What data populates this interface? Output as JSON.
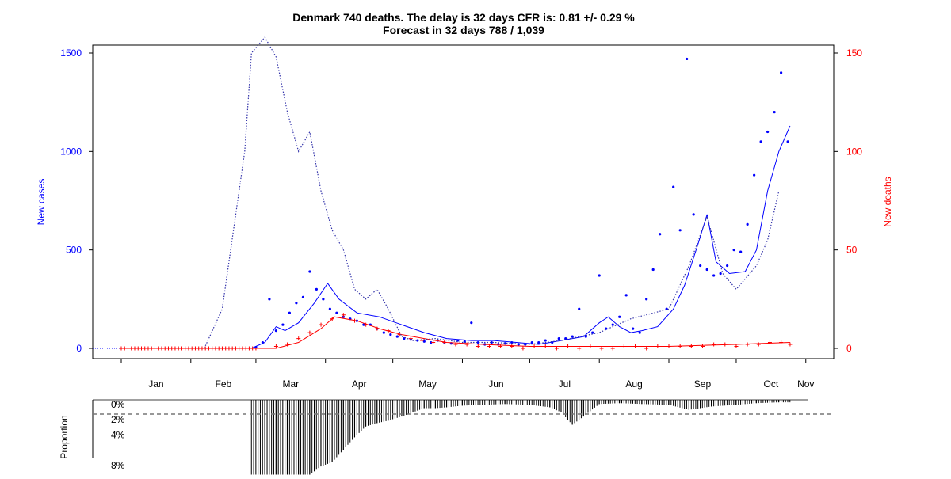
{
  "chart_data": [
    {
      "type": "line",
      "title": "Denmark 740 deaths. The delay is 32 days CFR is: 0.81 +/- 0.29 %",
      "subtitle": "Forecast in 32 days 788 / 1,039",
      "ylabel": "New cases",
      "y2label": "New deaths",
      "ylim": [
        0,
        1500
      ],
      "y2lim": [
        0,
        150
      ],
      "y_ticks": [
        "0",
        "500",
        "1000",
        "1500"
      ],
      "y2_ticks": [
        "0",
        "50",
        "100",
        "150"
      ],
      "x_ticks": [
        "Jan",
        "Feb",
        "Mar",
        "Apr",
        "May",
        "Jun",
        "Jul",
        "Aug",
        "Sep",
        "Oct",
        "Nov"
      ],
      "grid": false,
      "colors": {
        "cases": "#0000ff",
        "deaths": "#ff0000",
        "projection": "#3333aa"
      },
      "series": [
        {
          "name": "",
          "kind": "cases-points",
          "x": [
            "2020-03-01",
            "2020-03-04",
            "2020-03-07",
            "2020-03-10",
            "2020-03-13",
            "2020-03-16",
            "2020-03-19",
            "2020-03-22",
            "2020-03-25",
            "2020-03-28",
            "2020-03-31",
            "2020-04-03",
            "2020-04-06",
            "2020-04-09",
            "2020-04-12",
            "2020-04-15",
            "2020-04-18",
            "2020-04-21",
            "2020-04-24",
            "2020-04-27",
            "2020-04-30",
            "2020-05-03",
            "2020-05-06",
            "2020-05-09",
            "2020-05-12",
            "2020-05-15",
            "2020-05-18",
            "2020-05-21",
            "2020-05-24",
            "2020-05-27",
            "2020-05-30",
            "2020-06-02",
            "2020-06-05",
            "2020-06-08",
            "2020-06-11",
            "2020-06-14",
            "2020-06-17",
            "2020-06-20",
            "2020-06-23",
            "2020-06-26",
            "2020-06-29",
            "2020-07-02",
            "2020-07-05",
            "2020-07-08",
            "2020-07-11",
            "2020-07-14",
            "2020-07-17",
            "2020-07-20",
            "2020-07-23",
            "2020-07-26",
            "2020-07-29",
            "2020-08-01",
            "2020-08-04",
            "2020-08-07",
            "2020-08-10",
            "2020-08-13",
            "2020-08-16",
            "2020-08-19",
            "2020-08-22",
            "2020-08-25",
            "2020-08-28",
            "2020-08-31",
            "2020-09-03",
            "2020-09-06",
            "2020-09-09",
            "2020-09-12",
            "2020-09-15",
            "2020-09-18",
            "2020-09-21",
            "2020-09-24",
            "2020-09-27",
            "2020-09-30",
            "2020-10-03",
            "2020-10-06",
            "2020-10-09",
            "2020-10-12",
            "2020-10-15",
            "2020-10-18",
            "2020-10-21",
            "2020-10-24"
          ],
          "values": [
            5,
            30,
            250,
            90,
            120,
            180,
            230,
            260,
            390,
            300,
            250,
            200,
            180,
            160,
            150,
            140,
            120,
            120,
            100,
            80,
            70,
            60,
            50,
            45,
            40,
            35,
            30,
            40,
            30,
            25,
            40,
            35,
            130,
            30,
            20,
            30,
            20,
            25,
            30,
            20,
            20,
            30,
            30,
            40,
            30,
            50,
            50,
            60,
            200,
            60,
            80,
            370,
            100,
            120,
            160,
            270,
            100,
            80,
            250,
            400,
            580,
            200,
            820,
            600,
            1470,
            680,
            420,
            400,
            370,
            380,
            420,
            500,
            490,
            630,
            880,
            1050,
            1100,
            1200,
            1400,
            1050
          ]
        },
        {
          "name": "",
          "kind": "cases-smoothed",
          "x": [
            "2020-01-01",
            "2020-02-28",
            "2020-03-05",
            "2020-03-10",
            "2020-03-14",
            "2020-03-20",
            "2020-03-27",
            "2020-04-02",
            "2020-04-07",
            "2020-04-15",
            "2020-04-25",
            "2020-05-05",
            "2020-05-15",
            "2020-05-25",
            "2020-06-05",
            "2020-06-15",
            "2020-06-25",
            "2020-07-05",
            "2020-07-15",
            "2020-07-25",
            "2020-08-01",
            "2020-08-05",
            "2020-08-10",
            "2020-08-15",
            "2020-08-20",
            "2020-08-27",
            "2020-09-03",
            "2020-09-08",
            "2020-09-14",
            "2020-09-18",
            "2020-09-22",
            "2020-09-28",
            "2020-10-05",
            "2020-10-10",
            "2020-10-15",
            "2020-10-20",
            "2020-10-25"
          ],
          "values": [
            0,
            0,
            30,
            110,
            90,
            130,
            230,
            330,
            250,
            180,
            160,
            120,
            80,
            50,
            40,
            40,
            30,
            20,
            40,
            60,
            130,
            160,
            110,
            80,
            90,
            110,
            200,
            320,
            530,
            680,
            440,
            380,
            390,
            500,
            800,
            1000,
            1130
          ]
        },
        {
          "name": "",
          "kind": "deaths-points",
          "x": [
            "2020-03-10",
            "2020-03-15",
            "2020-03-20",
            "2020-03-25",
            "2020-03-30",
            "2020-04-04",
            "2020-04-09",
            "2020-04-14",
            "2020-04-19",
            "2020-04-24",
            "2020-04-29",
            "2020-05-04",
            "2020-05-09",
            "2020-05-14",
            "2020-05-19",
            "2020-05-24",
            "2020-05-29",
            "2020-06-03",
            "2020-06-08",
            "2020-06-13",
            "2020-06-18",
            "2020-06-23",
            "2020-06-28",
            "2020-07-03",
            "2020-07-08",
            "2020-07-13",
            "2020-07-18",
            "2020-07-23",
            "2020-07-28",
            "2020-08-02",
            "2020-08-07",
            "2020-08-12",
            "2020-08-17",
            "2020-08-22",
            "2020-08-27",
            "2020-09-01",
            "2020-09-06",
            "2020-09-11",
            "2020-09-16",
            "2020-09-21",
            "2020-09-26",
            "2020-10-01",
            "2020-10-06",
            "2020-10-11",
            "2020-10-16",
            "2020-10-21",
            "2020-10-25"
          ],
          "values": [
            1,
            2,
            5,
            8,
            12,
            15,
            17,
            14,
            12,
            10,
            9,
            7,
            5,
            4,
            3,
            3,
            2,
            2,
            1,
            1,
            1,
            1,
            0,
            1,
            1,
            0,
            1,
            0,
            1,
            0,
            0,
            1,
            1,
            0,
            1,
            1,
            1,
            1,
            1,
            2,
            2,
            1,
            2,
            2,
            3,
            3,
            2
          ]
        },
        {
          "name": "",
          "kind": "deaths-smoothed",
          "x": [
            "2020-01-01",
            "2020-03-10",
            "2020-03-20",
            "2020-03-30",
            "2020-04-05",
            "2020-04-15",
            "2020-04-25",
            "2020-05-05",
            "2020-05-15",
            "2020-05-25",
            "2020-06-10",
            "2020-07-01",
            "2020-08-01",
            "2020-09-01",
            "2020-10-01",
            "2020-10-25"
          ],
          "values": [
            0,
            0,
            3,
            10,
            16,
            14,
            10,
            7,
            5,
            3,
            2,
            1,
            1,
            1,
            2,
            3
          ]
        },
        {
          "name": "",
          "kind": "projection-dotted",
          "x": [
            "2020-02-07",
            "2020-02-15",
            "2020-02-20",
            "2020-02-25",
            "2020-02-28",
            "2020-03-05",
            "2020-03-10",
            "2020-03-15",
            "2020-03-20",
            "2020-03-25",
            "2020-03-30",
            "2020-04-04",
            "2020-04-09",
            "2020-04-14",
            "2020-04-19",
            "2020-04-24",
            "2020-04-29",
            "2020-05-05",
            "2020-05-10",
            "2020-05-20",
            "2020-06-01",
            "2020-06-15",
            "2020-07-01",
            "2020-07-15",
            "2020-08-01",
            "2020-08-15",
            "2020-09-01",
            "2020-09-10",
            "2020-09-18",
            "2020-09-25",
            "2020-10-01",
            "2020-10-10",
            "2020-10-15",
            "2020-10-20"
          ],
          "values": [
            0,
            200,
            600,
            1000,
            1500,
            1580,
            1480,
            1200,
            1000,
            1100,
            800,
            600,
            500,
            300,
            250,
            300,
            200,
            60,
            40,
            50,
            30,
            30,
            20,
            40,
            80,
            150,
            200,
            420,
            670,
            380,
            300,
            420,
            550,
            800
          ]
        }
      ]
    },
    {
      "type": "bar",
      "ylabel": "Proportion",
      "y_ticks": [
        "0%",
        "2%",
        "4%",
        "8%"
      ],
      "reference_line": "2%",
      "x": [
        "2020-02-28",
        "2020-03-05",
        "2020-03-10",
        "2020-03-15",
        "2020-03-20",
        "2020-03-25",
        "2020-03-30",
        "2020-04-04",
        "2020-04-09",
        "2020-04-14",
        "2020-04-19",
        "2020-04-24",
        "2020-04-29",
        "2020-05-05",
        "2020-05-10",
        "2020-05-15",
        "2020-05-20",
        "2020-05-25",
        "2020-06-01",
        "2020-06-10",
        "2020-06-20",
        "2020-07-01",
        "2020-07-10",
        "2020-07-15",
        "2020-07-20",
        "2020-07-25",
        "2020-08-01",
        "2020-08-10",
        "2020-08-20",
        "2020-09-01",
        "2020-09-10",
        "2020-09-20",
        "2020-10-01",
        "2020-10-10",
        "2020-10-20",
        "2020-10-25"
      ],
      "values": [
        9.0,
        9.0,
        9.0,
        9.0,
        9.0,
        9.0,
        8.0,
        7.5,
        6.0,
        4.5,
        3.2,
        2.8,
        2.5,
        2.0,
        1.5,
        1.0,
        1.0,
        0.9,
        0.7,
        0.6,
        0.5,
        0.6,
        0.9,
        1.5,
        3.0,
        2.0,
        0.5,
        0.4,
        0.5,
        0.6,
        1.2,
        0.8,
        0.6,
        0.4,
        0.3,
        0.3
      ]
    }
  ]
}
